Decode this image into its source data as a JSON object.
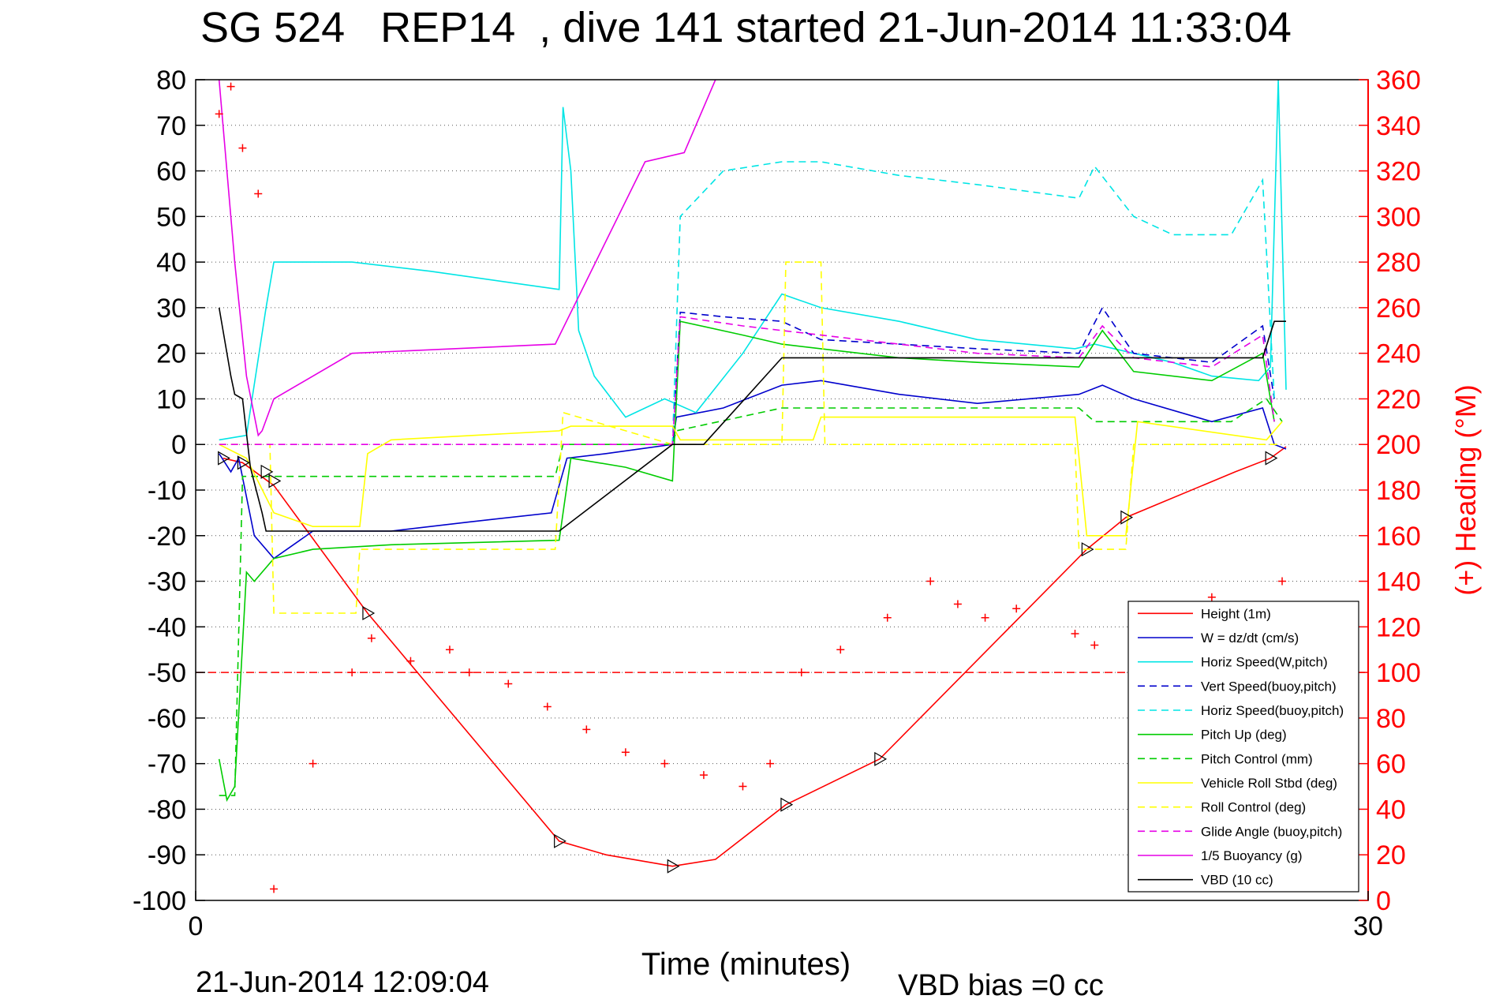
{
  "title": "SG 524   REP14  , dive 141 started 21-Jun-2014 11:33:04",
  "footer": {
    "end_time": "21-Jun-2014 12:09:04",
    "vbd_bias": "VBD bias =0 cc"
  },
  "chart_data": {
    "type": "line",
    "xlabel": "Time (minutes)",
    "ylabel": "",
    "ylabel_right": "(+) Heading (°M)",
    "xlim": [
      0,
      30
    ],
    "ylim": [
      -100,
      80
    ],
    "ylim_right": [
      0,
      360
    ],
    "grid": true,
    "legend_position": "bottom-right",
    "x_ticks": [
      0,
      30
    ],
    "y_ticks": [
      80,
      70,
      60,
      50,
      40,
      30,
      20,
      10,
      0,
      -10,
      -20,
      -30,
      -40,
      -50,
      -60,
      -70,
      -80,
      -90,
      -100
    ],
    "y_ticks_right": [
      360,
      340,
      320,
      300,
      280,
      260,
      240,
      220,
      200,
      180,
      160,
      140,
      120,
      100,
      80,
      60,
      40,
      20,
      0
    ],
    "colors": {
      "height": "#ff0000",
      "w": "#0000cc",
      "horiz_speed": "#00e5e5",
      "pitch_up": "#00cc00",
      "vehicle_roll": "#ffff00",
      "buoyancy": "#e600e6",
      "vbd": "#000000",
      "heading": "#ff0000"
    },
    "series": [
      {
        "name": "Height (1m)",
        "key": "height",
        "style": "solid",
        "x": [
          0.7,
          1.2,
          2.0,
          4.4,
          9.3,
          10.5,
          12.2,
          13.3,
          15.1,
          17.5,
          22.8,
          23.8,
          26.6,
          27.5,
          27.9
        ],
        "y": [
          -3,
          -4,
          -9,
          -37,
          -87,
          -90,
          -92.5,
          -91,
          -79,
          -69,
          -23,
          -16,
          -6,
          -3,
          -0.5
        ]
      },
      {
        "name": "W = dz/dt (cm/s)",
        "key": "w",
        "style": "solid",
        "x": [
          0.6,
          0.9,
          1.1,
          1.5,
          2.0,
          3.0,
          5.0,
          7.0,
          9.1,
          9.5,
          10.5,
          12.2,
          12.3,
          13.5,
          15.0,
          16.0,
          18.0,
          20.0,
          22.6,
          23.2,
          24.0,
          26.0,
          27.3,
          27.6,
          27.9
        ],
        "y": [
          -2,
          -6,
          -3,
          -20,
          -25,
          -19,
          -19,
          -17,
          -15,
          -3,
          -2,
          0,
          6,
          8,
          13,
          14,
          11,
          9,
          11,
          13,
          10,
          5,
          8,
          0,
          -1
        ]
      },
      {
        "name": "Horiz Speed(W,pitch)",
        "key": "horiz_speed",
        "style": "solid",
        "x": [
          0.6,
          1.3,
          1.8,
          2.0,
          4.0,
          6.0,
          9.3,
          9.4,
          9.6,
          9.8,
          10.2,
          11.0,
          12.0,
          12.8,
          14.0,
          15.0,
          16.0,
          18.0,
          20.0,
          22.5,
          23.0,
          24.0,
          25.0,
          26.0,
          27.2,
          27.5,
          27.7,
          27.9
        ],
        "y": [
          1,
          2,
          30,
          40,
          40,
          38,
          34,
          74,
          60,
          25,
          15,
          6,
          10,
          7,
          20,
          33,
          30,
          27,
          23,
          21,
          22,
          20,
          18,
          15,
          14,
          17,
          80,
          12
        ]
      },
      {
        "name": "Vert Speed(buoy,pitch)",
        "key": "vert_speed",
        "style": "dashed",
        "x": [
          12.2,
          12.4,
          13.5,
          15.0,
          16.0,
          18.0,
          20.0,
          22.6,
          23.2,
          24.0,
          26.0,
          27.3,
          27.6
        ],
        "y": [
          0,
          29,
          28,
          27,
          23,
          22,
          21,
          20,
          30,
          20,
          18,
          26,
          10
        ]
      },
      {
        "name": "Horiz Speed(buoy,pitch)",
        "key": "horiz_speed_buoy",
        "style": "dashed",
        "x": [
          12.2,
          12.4,
          13.5,
          15.0,
          16.0,
          18.0,
          20.0,
          22.6,
          23.0,
          24.0,
          25.0,
          26.5,
          27.3,
          27.6
        ],
        "y": [
          0,
          50,
          60,
          62,
          62,
          59,
          57,
          54,
          61,
          50,
          46,
          46,
          58,
          10
        ]
      },
      {
        "name": "Pitch Up (deg)",
        "key": "pitch_up",
        "style": "solid",
        "x": [
          0.6,
          0.8,
          1.0,
          1.3,
          1.5,
          2.0,
          3.0,
          5.0,
          9.3,
          9.6,
          11.0,
          12.2,
          12.4,
          14.0,
          15.0,
          16.0,
          18.0,
          20.0,
          22.6,
          23.2,
          24.0,
          26.0,
          27.3,
          27.6
        ],
        "y": [
          -69,
          -78,
          -75,
          -28,
          -30,
          -25,
          -23,
          -22,
          -21,
          -3,
          -5,
          -8,
          27,
          24,
          22,
          21,
          19,
          18,
          17,
          25,
          16,
          14,
          20,
          5
        ]
      },
      {
        "name": "Pitch Control (mm)",
        "key": "pitch_control",
        "style": "dashed",
        "x": [
          0.6,
          1.0,
          1.2,
          2.0,
          9.2,
          9.4,
          12.2,
          12.3,
          15.0,
          22.6,
          23.0,
          26.5,
          27.4,
          27.8
        ],
        "y": [
          -77,
          -77,
          -7,
          -7,
          -7,
          0,
          0,
          3,
          8,
          8,
          5,
          5,
          10,
          5
        ]
      },
      {
        "name": "Vehicle Roll Stbd (deg)",
        "key": "vehicle_roll",
        "style": "solid",
        "x": [
          0.6,
          1.3,
          2.0,
          3.0,
          4.2,
          4.4,
          5.0,
          9.3,
          9.6,
          12.2,
          12.4,
          15.8,
          16.0,
          22.5,
          22.8,
          23.8,
          24.1,
          27.4,
          27.8
        ],
        "y": [
          0,
          -3,
          -15,
          -18,
          -18,
          -2,
          1,
          3,
          4,
          4,
          1,
          1,
          6,
          6,
          -20,
          -20,
          5,
          1,
          5
        ]
      },
      {
        "name": "Roll Control (deg)",
        "key": "roll_control",
        "style": "dashed",
        "x": [
          0.6,
          1.3,
          1.9,
          2.0,
          4.1,
          4.2,
          9.2,
          9.4,
          12.2,
          15.0,
          15.1,
          16.0,
          16.1,
          22.5,
          22.6,
          23.8,
          24.0,
          27.4,
          27.8
        ],
        "y": [
          0,
          0,
          0,
          -37,
          -37,
          -23,
          -23,
          7,
          0,
          0,
          40,
          40,
          0,
          0,
          -23,
          -23,
          0,
          0,
          0
        ]
      },
      {
        "name": "Glide Angle (buoy,pitch)",
        "key": "glide_angle",
        "style": "dashed",
        "x": [
          0.6,
          12.2,
          12.4,
          14.0,
          16.0,
          18.0,
          20.0,
          22.6,
          23.2,
          24.0,
          26.0,
          27.3,
          27.6
        ],
        "y": [
          0,
          0,
          28,
          26,
          24,
          22,
          20,
          19,
          26,
          19,
          17,
          24,
          5
        ]
      },
      {
        "name": "1/5 Buoyancy (g)",
        "key": "buoyancy",
        "style": "solid",
        "x": [
          0.6,
          0.8,
          1.0,
          1.3,
          1.6,
          1.7,
          2.0,
          4.0,
          9.2,
          11.5,
          12.5,
          13.3
        ],
        "y": [
          80,
          60,
          40,
          15,
          2,
          3,
          10,
          20,
          22,
          62,
          64,
          80
        ]
      },
      {
        "name": "VBD (10 cc)",
        "key": "vbd",
        "style": "solid",
        "x": [
          0.6,
          0.9,
          1.0,
          1.2,
          1.4,
          1.7,
          1.8,
          9.3,
          12.2,
          13.0,
          15.0,
          22.5,
          27.3,
          27.6,
          27.9
        ],
        "y": [
          30,
          15,
          11,
          10,
          -5,
          -15,
          -19,
          -19,
          0,
          0,
          19,
          19,
          19,
          27,
          27
        ]
      }
    ],
    "heading": {
      "name": "Heading",
      "marker": "+",
      "x": [
        0.6,
        0.9,
        1.2,
        1.6,
        2.0,
        3.0,
        4.0,
        4.5,
        5.5,
        6.5,
        7.0,
        8.0,
        9.0,
        10.0,
        11.0,
        12.0,
        13.0,
        14.0,
        14.7,
        15.5,
        16.5,
        17.7,
        18.8,
        19.5,
        20.2,
        21.0,
        22.5,
        23.0,
        24.0,
        25.0,
        26.0,
        27.0,
        27.8
      ],
      "y": [
        345,
        357,
        330,
        310,
        5,
        60,
        100,
        115,
        105,
        110,
        100,
        95,
        85,
        75,
        65,
        60,
        55,
        50,
        60,
        100,
        110,
        124,
        140,
        130,
        124,
        128,
        117,
        112,
        102,
        125,
        133,
        125,
        140
      ]
    },
    "height_markers": {
      "x": [
        0.7,
        1.2,
        1.8,
        2.0,
        4.4,
        9.3,
        12.2,
        15.1,
        17.5,
        22.8,
        23.8,
        27.5
      ],
      "y": [
        -3,
        -4,
        -6,
        -8,
        -37,
        -87,
        -92.5,
        -79,
        -69,
        -23,
        -16,
        -3
      ]
    },
    "reference_line": {
      "style": "dashed",
      "value_right": 100
    }
  }
}
